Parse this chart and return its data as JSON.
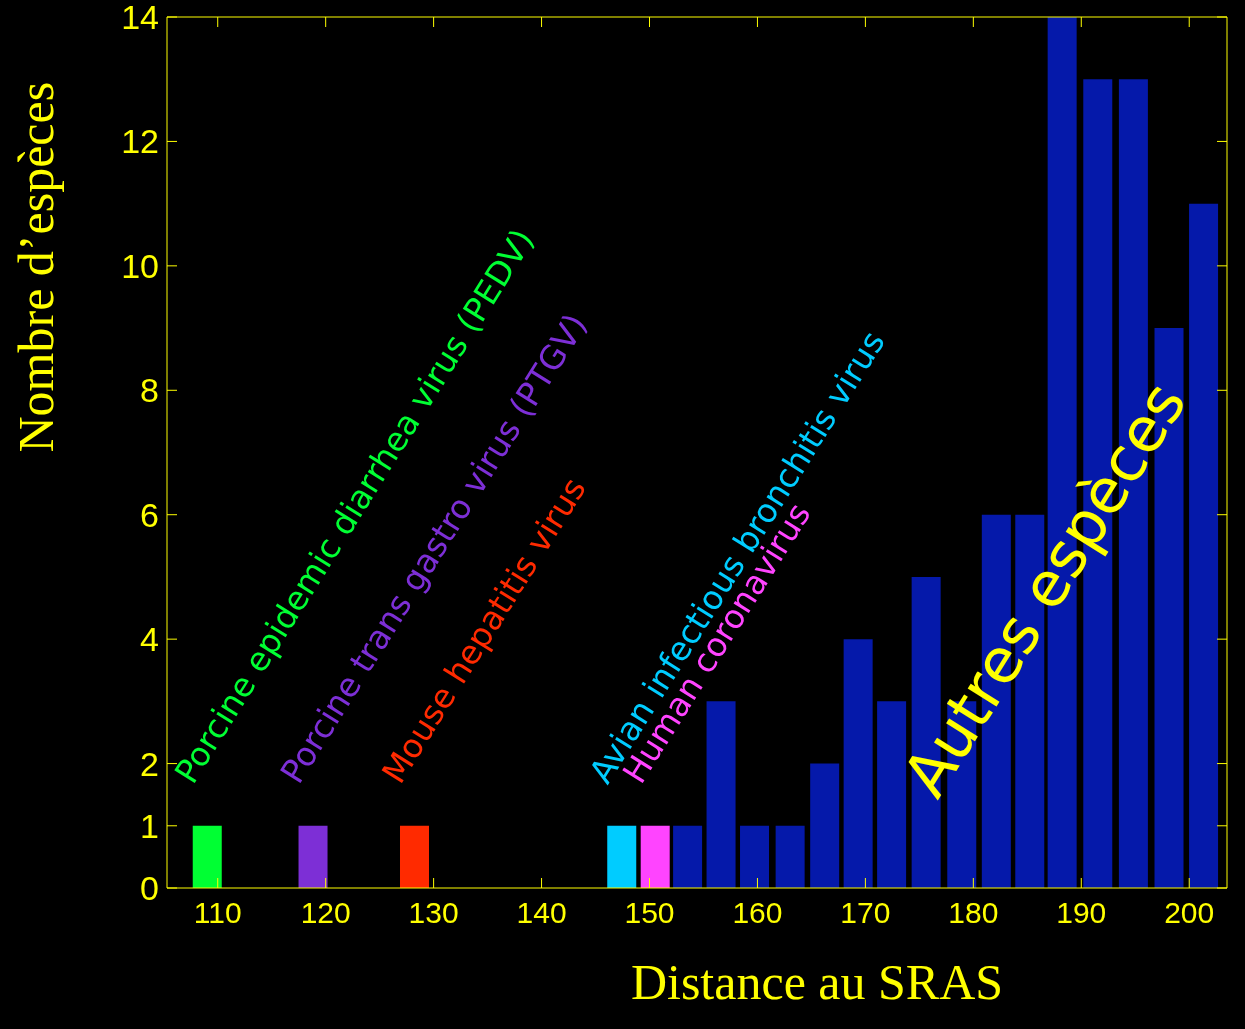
{
  "chart_data": {
    "type": "bar",
    "xlabel": "Distance au SRAS",
    "ylabel": "Nombre d’espèces",
    "x": [
      109,
      118.8,
      128.2,
      147.4,
      150.5,
      153.5,
      156.6,
      159.7,
      163,
      166.2,
      169.3,
      172.4,
      175.6,
      178.9,
      182.1,
      185.2,
      188.2,
      191.5,
      194.8,
      198.1,
      201.3
    ],
    "values": [
      1,
      1,
      1,
      1,
      1,
      1,
      3,
      1,
      1,
      2,
      4,
      3,
      5,
      3,
      6,
      6,
      14,
      13,
      13,
      9,
      11
    ],
    "colors": [
      "#00ff33",
      "#7d2fd6",
      "#ff2a00",
      "#00ccff",
      "#ff44ff",
      "#0519aa",
      "#0519aa",
      "#0519aa",
      "#0519aa",
      "#0519aa",
      "#0519aa",
      "#0519aa",
      "#0519aa",
      "#0519aa",
      "#0519aa",
      "#0519aa",
      "#0519aa",
      "#0519aa",
      "#0519aa",
      "#0519aa",
      "#0519aa"
    ],
    "xlim": [
      105.3,
      203.5
    ],
    "xticks": [
      110,
      120,
      130,
      140,
      150,
      160,
      170,
      180,
      190,
      200
    ],
    "ylim": [
      0,
      14
    ],
    "yticks": [
      0,
      1,
      2,
      4,
      6,
      8,
      10,
      12,
      14
    ],
    "annotations": [
      "Porcine epidemic diarrhea virus (PEDV)",
      "Porcine trans gastro virus (PTGV)",
      "Mouse hepatitis virus",
      "Avian infectious bronchitis virus",
      "Human coronavirus",
      "Autres espèces"
    ]
  }
}
